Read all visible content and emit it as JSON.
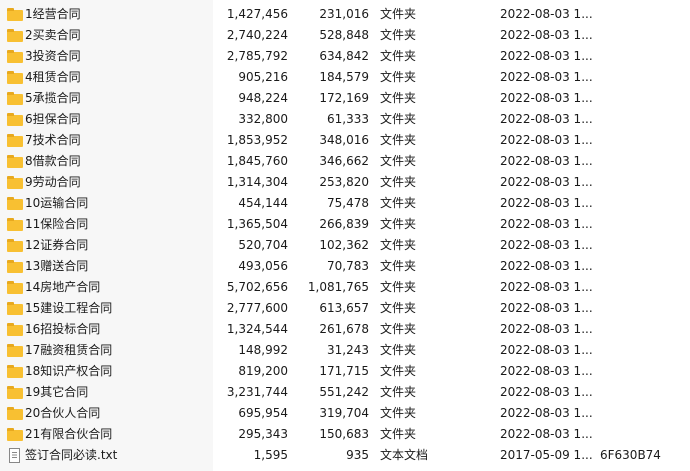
{
  "files": [
    {
      "name": "1经营合同",
      "size": "1,427,456",
      "packed": "231,016",
      "type": "文件夹",
      "modified": "2022-08-03 1...",
      "crc": "",
      "icon": "folder-icon"
    },
    {
      "name": "2买卖合同",
      "size": "2,740,224",
      "packed": "528,848",
      "type": "文件夹",
      "modified": "2022-08-03 1...",
      "crc": "",
      "icon": "folder-icon"
    },
    {
      "name": "3投资合同",
      "size": "2,785,792",
      "packed": "634,842",
      "type": "文件夹",
      "modified": "2022-08-03 1...",
      "crc": "",
      "icon": "folder-icon"
    },
    {
      "name": "4租赁合同",
      "size": "905,216",
      "packed": "184,579",
      "type": "文件夹",
      "modified": "2022-08-03 1...",
      "crc": "",
      "icon": "folder-icon"
    },
    {
      "name": "5承揽合同",
      "size": "948,224",
      "packed": "172,169",
      "type": "文件夹",
      "modified": "2022-08-03 1...",
      "crc": "",
      "icon": "folder-icon"
    },
    {
      "name": "6担保合同",
      "size": "332,800",
      "packed": "61,333",
      "type": "文件夹",
      "modified": "2022-08-03 1...",
      "crc": "",
      "icon": "folder-icon"
    },
    {
      "name": "7技术合同",
      "size": "1,853,952",
      "packed": "348,016",
      "type": "文件夹",
      "modified": "2022-08-03 1...",
      "crc": "",
      "icon": "folder-icon"
    },
    {
      "name": "8借款合同",
      "size": "1,845,760",
      "packed": "346,662",
      "type": "文件夹",
      "modified": "2022-08-03 1...",
      "crc": "",
      "icon": "folder-icon"
    },
    {
      "name": "9劳动合同",
      "size": "1,314,304",
      "packed": "253,820",
      "type": "文件夹",
      "modified": "2022-08-03 1...",
      "crc": "",
      "icon": "folder-icon"
    },
    {
      "name": "10运输合同",
      "size": "454,144",
      "packed": "75,478",
      "type": "文件夹",
      "modified": "2022-08-03 1...",
      "crc": "",
      "icon": "folder-icon"
    },
    {
      "name": "11保险合同",
      "size": "1,365,504",
      "packed": "266,839",
      "type": "文件夹",
      "modified": "2022-08-03 1...",
      "crc": "",
      "icon": "folder-icon"
    },
    {
      "name": "12证券合同",
      "size": "520,704",
      "packed": "102,362",
      "type": "文件夹",
      "modified": "2022-08-03 1...",
      "crc": "",
      "icon": "folder-icon"
    },
    {
      "name": "13赠送合同",
      "size": "493,056",
      "packed": "70,783",
      "type": "文件夹",
      "modified": "2022-08-03 1...",
      "crc": "",
      "icon": "folder-icon"
    },
    {
      "name": "14房地产合同",
      "size": "5,702,656",
      "packed": "1,081,765",
      "type": "文件夹",
      "modified": "2022-08-03 1...",
      "crc": "",
      "icon": "folder-icon"
    },
    {
      "name": "15建设工程合同",
      "size": "2,777,600",
      "packed": "613,657",
      "type": "文件夹",
      "modified": "2022-08-03 1...",
      "crc": "",
      "icon": "folder-icon"
    },
    {
      "name": "16招投标合同",
      "size": "1,324,544",
      "packed": "261,678",
      "type": "文件夹",
      "modified": "2022-08-03 1...",
      "crc": "",
      "icon": "folder-icon"
    },
    {
      "name": "17融资租赁合同",
      "size": "148,992",
      "packed": "31,243",
      "type": "文件夹",
      "modified": "2022-08-03 1...",
      "crc": "",
      "icon": "folder-icon"
    },
    {
      "name": "18知识产权合同",
      "size": "819,200",
      "packed": "171,715",
      "type": "文件夹",
      "modified": "2022-08-03 1...",
      "crc": "",
      "icon": "folder-icon"
    },
    {
      "name": "19其它合同",
      "size": "3,231,744",
      "packed": "551,242",
      "type": "文件夹",
      "modified": "2022-08-03 1...",
      "crc": "",
      "icon": "folder-icon"
    },
    {
      "name": "20合伙人合同",
      "size": "695,954",
      "packed": "319,704",
      "type": "文件夹",
      "modified": "2022-08-03 1...",
      "crc": "",
      "icon": "folder-icon"
    },
    {
      "name": "21有限合伙合同",
      "size": "295,343",
      "packed": "150,683",
      "type": "文件夹",
      "modified": "2022-08-03 1...",
      "crc": "",
      "icon": "folder-icon"
    },
    {
      "name": "签订合同必读.txt",
      "size": "1,595",
      "packed": "935",
      "type": "文本文档",
      "modified": "2017-05-09 1...",
      "crc": "6F630B74",
      "icon": "text-file-icon"
    }
  ]
}
